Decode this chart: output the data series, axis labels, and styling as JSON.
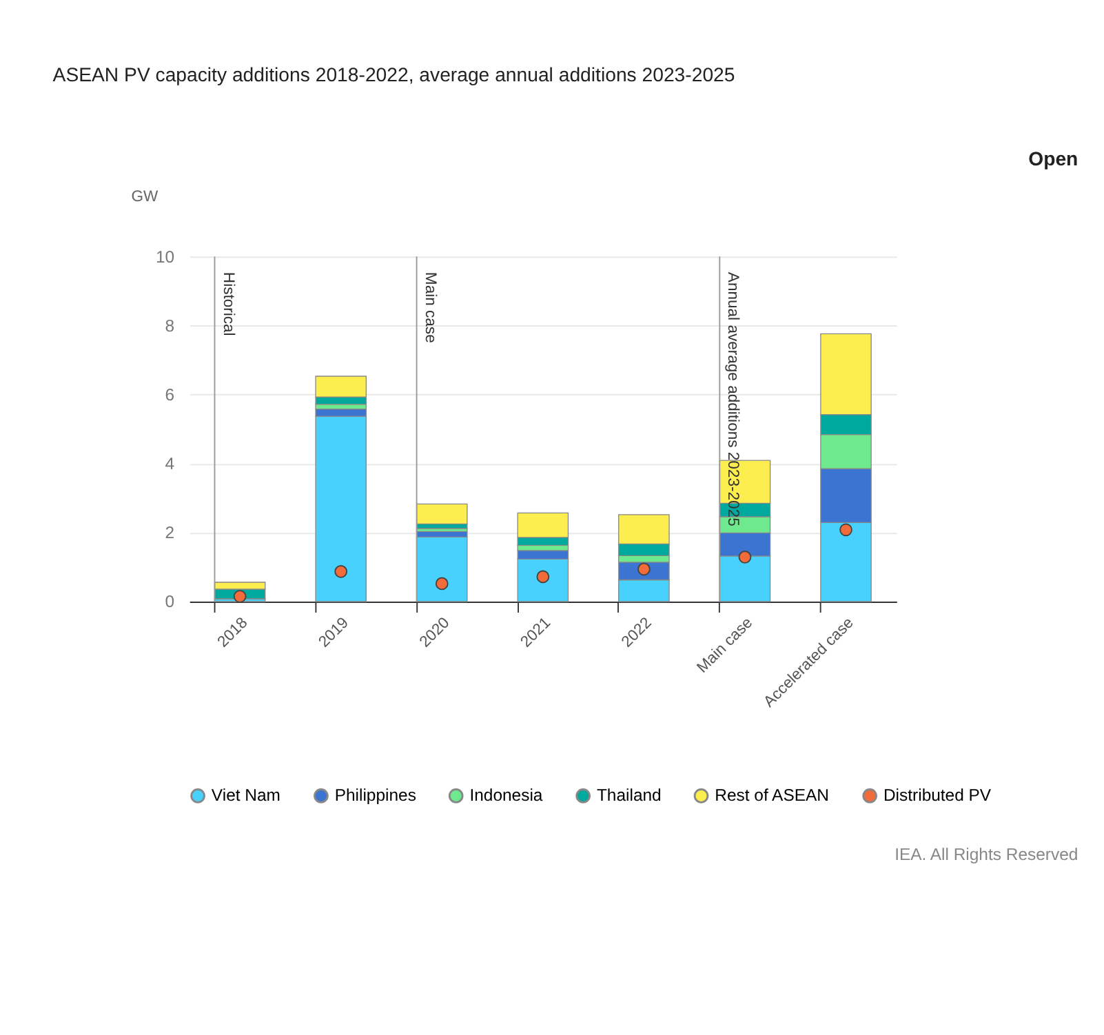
{
  "chart_data": {
    "type": "bar",
    "title": "ASEAN PV capacity additions 2018-2022, average annual additions 2023-2025",
    "ylabel": "GW",
    "categories": [
      "2018",
      "2019",
      "2020",
      "2021",
      "2022",
      "Main case",
      "Accelerated case"
    ],
    "stacked": true,
    "series": [
      {
        "name": "Viet Nam",
        "color": "#47d1fc",
        "values": [
          0.08,
          5.37,
          1.87,
          1.23,
          0.63,
          1.32,
          2.29
        ]
      },
      {
        "name": "Philippines",
        "color": "#3b74d1",
        "values": [
          0,
          0.21,
          0.16,
          0.25,
          0.51,
          0.67,
          1.56
        ]
      },
      {
        "name": "Indonesia",
        "color": "#6ee98e",
        "values": [
          0,
          0.14,
          0.09,
          0.15,
          0.19,
          0.47,
          0.99
        ]
      },
      {
        "name": "Thailand",
        "color": "#00a99d",
        "values": [
          0.28,
          0.21,
          0.13,
          0.23,
          0.34,
          0.39,
          0.58
        ]
      },
      {
        "name": "Rest of ASEAN",
        "color": "#fdee4f",
        "values": [
          0.2,
          0.6,
          0.58,
          0.71,
          0.85,
          1.24,
          2.34
        ]
      },
      {
        "name": "Distributed PV",
        "color": "#f26b3a",
        "type": "scatter",
        "values": [
          0.15,
          0.87,
          0.52,
          0.72,
          0.94,
          1.29,
          2.08
        ]
      }
    ],
    "ylim": [
      0,
      10
    ],
    "yticks": [
      0,
      2,
      4,
      6,
      8,
      10
    ],
    "grid": "y",
    "legend": "bottom",
    "marker": "circle",
    "ref_lines": [
      {
        "axis": "x",
        "value": "2018",
        "label": "Historical"
      },
      {
        "axis": "x",
        "value": "2020",
        "label": "Main case"
      },
      {
        "axis": "x",
        "value": "Main case",
        "label": "Annual average additions 2023-2025"
      }
    ],
    "annotations": [
      "Open",
      "IEA. All Rights Reserved"
    ]
  }
}
